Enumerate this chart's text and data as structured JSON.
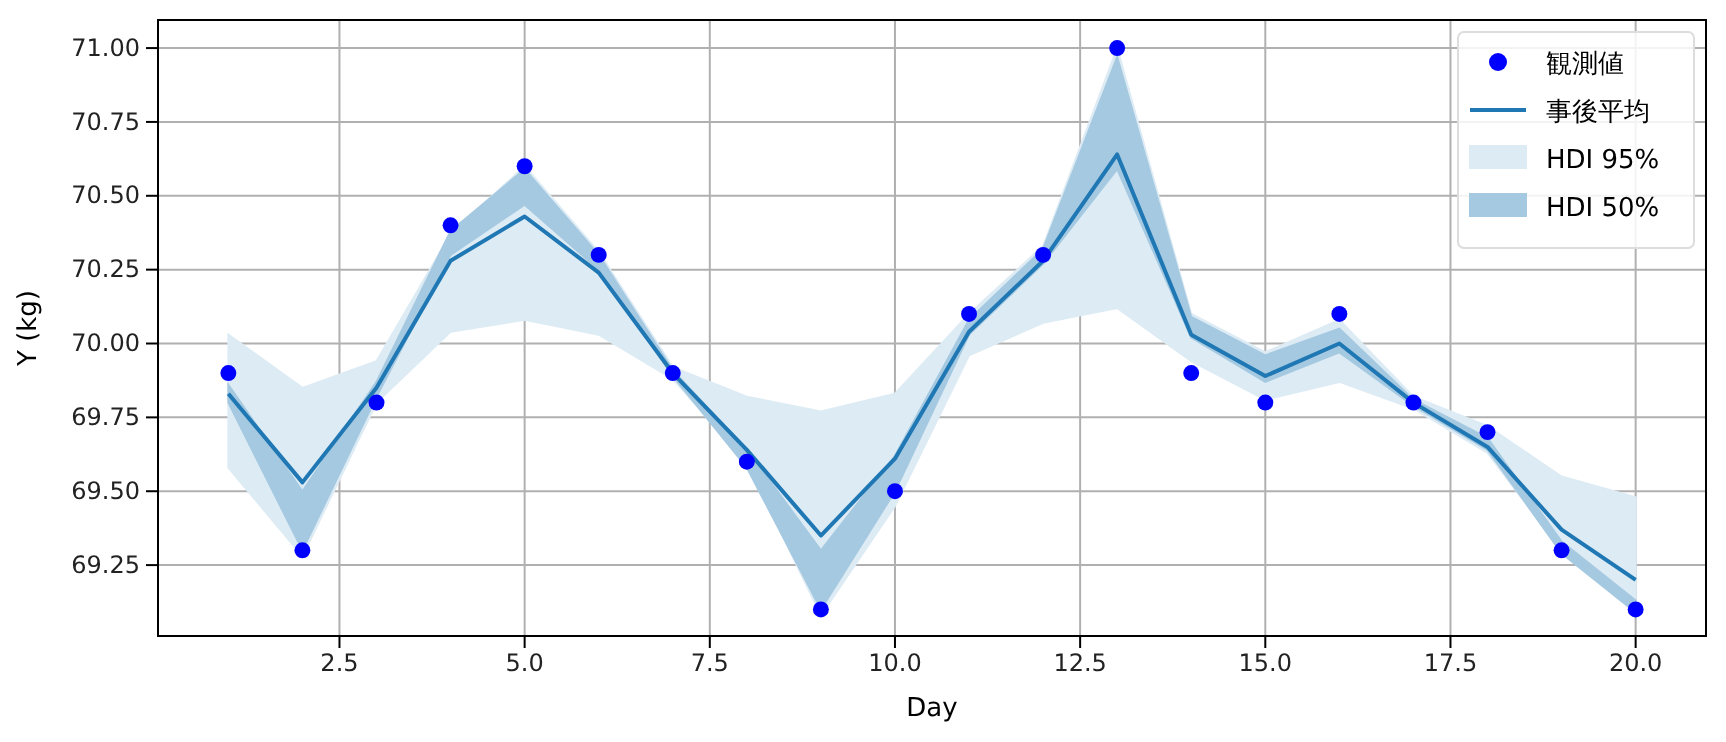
{
  "chart_data": {
    "type": "scatter",
    "xlabel": "Day",
    "ylabel": "Y (kg)",
    "x": [
      1,
      2,
      3,
      4,
      5,
      6,
      7,
      8,
      9,
      10,
      11,
      12,
      13,
      14,
      15,
      16,
      17,
      18,
      19,
      20
    ],
    "xlim": [
      0.05,
      20.95
    ],
    "xticks": [
      2.5,
      {
        "value": 5,
        "label": "5.0"
      },
      7.5,
      {
        "value": 10,
        "label": "10.0"
      },
      12.5,
      {
        "value": 15,
        "label": "15.0"
      },
      17.5,
      {
        "value": 20,
        "label": "20.0"
      }
    ],
    "ylim": [
      69.01,
      71.095
    ],
    "yticks": [
      69.25,
      {
        "value": 69.5,
        "label": "69.50"
      },
      69.75,
      {
        "value": 70,
        "label": "70.00"
      },
      70.25,
      {
        "value": 70.5,
        "label": "70.50"
      },
      70.75,
      {
        "value": 71,
        "label": "71.00"
      }
    ],
    "grid": true,
    "legend": "top right",
    "series": [
      {
        "name": "観測値",
        "color": "#0000ff",
        "marker": "circle",
        "values": [
          69.9,
          69.3,
          69.8,
          70.4,
          70.6,
          70.3,
          69.9,
          69.6,
          69.1,
          69.5,
          70.1,
          70.3,
          71.0,
          69.9,
          69.8,
          70.1,
          69.8,
          69.7,
          69.3,
          69.1
        ]
      },
      {
        "name": "事後平均",
        "type": "line",
        "color": "#1f77b4",
        "line_style": "solid",
        "values": [
          69.83,
          69.53,
          69.85,
          70.28,
          70.43,
          70.24,
          69.9,
          69.64,
          69.35,
          69.61,
          70.04,
          70.28,
          70.64,
          70.03,
          69.89,
          70.0,
          69.8,
          69.65,
          69.37,
          69.2
        ]
      },
      {
        "name": "HDI 95%",
        "type": "area",
        "color": "#ddebf4",
        "values": [
          null,
          null,
          null,
          null,
          null,
          null,
          null,
          null,
          null,
          null,
          null,
          null,
          null,
          null,
          null,
          null,
          null,
          null,
          null,
          null
        ],
        "upper": [
          70.03,
          69.85,
          69.94,
          70.37,
          70.6,
          70.31,
          69.92,
          69.82,
          69.77,
          69.83,
          70.1,
          70.33,
          71.0,
          70.1,
          69.97,
          70.08,
          69.82,
          69.72,
          69.55,
          69.48
        ],
        "lower": [
          69.58,
          69.28,
          69.8,
          70.04,
          70.08,
          70.03,
          69.88,
          69.6,
          69.08,
          69.45,
          69.96,
          70.07,
          70.12,
          69.94,
          69.81,
          69.87,
          69.78,
          69.63,
          69.3,
          69.09
        ]
      },
      {
        "name": "HDI 50%",
        "type": "area",
        "color": "#a5c9e1",
        "values": [
          null,
          null,
          null,
          null,
          null,
          null,
          null,
          null,
          null,
          null,
          null,
          null,
          null,
          null,
          null,
          null,
          null,
          null,
          null,
          null
        ],
        "upper": [
          69.86,
          69.5,
          69.87,
          70.38,
          70.59,
          70.3,
          69.91,
          69.64,
          69.3,
          69.62,
          70.08,
          70.32,
          70.97,
          70.09,
          69.96,
          70.05,
          69.81,
          69.68,
          69.33,
          69.13
        ],
        "lower": [
          69.8,
          69.3,
          69.82,
          70.3,
          70.47,
          70.25,
          69.89,
          69.58,
          69.1,
          69.5,
          70.03,
          70.27,
          70.59,
          70.02,
          69.87,
          69.97,
          69.79,
          69.64,
          69.29,
          69.09
        ]
      }
    ]
  }
}
